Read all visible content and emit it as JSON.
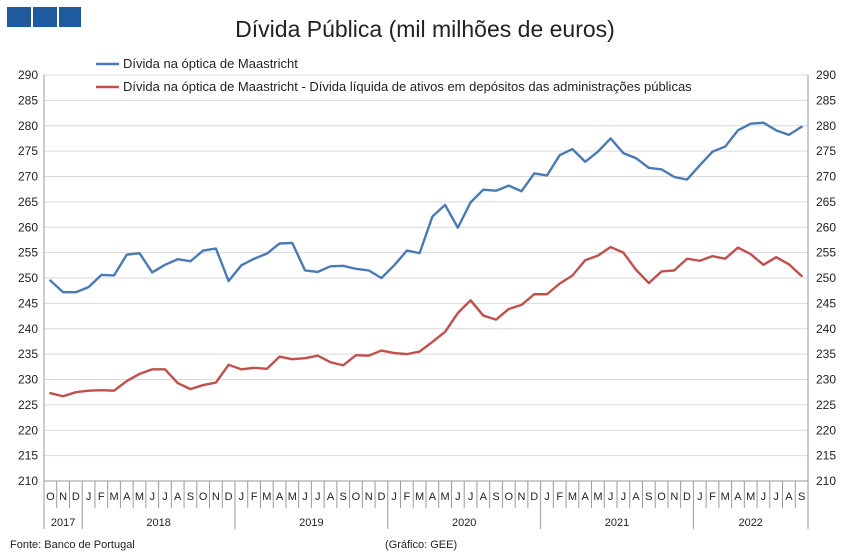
{
  "chart_data": {
    "type": "line",
    "title": "Dívida Pública (mil milhões de euros)",
    "ylim": [
      210,
      290
    ],
    "y_ticks": [
      210,
      215,
      220,
      225,
      230,
      235,
      240,
      245,
      250,
      255,
      260,
      265,
      270,
      275,
      280,
      285,
      290
    ],
    "secondary_y_ticks": [
      210,
      215,
      220,
      225,
      230,
      235,
      240,
      245,
      250,
      255,
      260,
      265,
      270,
      275,
      280,
      285,
      290
    ],
    "grid": true,
    "legend_position": "top",
    "x_month_labels": [
      "O",
      "N",
      "D",
      "J",
      "F",
      "M",
      "A",
      "M",
      "J",
      "J",
      "A",
      "S",
      "O",
      "N",
      "D",
      "J",
      "F",
      "M",
      "A",
      "M",
      "J",
      "J",
      "A",
      "S",
      "O",
      "N",
      "D",
      "J",
      "F",
      "M",
      "A",
      "M",
      "J",
      "J",
      "A",
      "S",
      "O",
      "N",
      "D",
      "J",
      "F",
      "M",
      "A",
      "M",
      "J",
      "J",
      "A",
      "S",
      "O",
      "N",
      "D",
      "J",
      "F",
      "M",
      "A",
      "M",
      "J",
      "J",
      "A",
      "S"
    ],
    "x_year_groups": [
      {
        "year": "2017",
        "start": 0,
        "count": 3
      },
      {
        "year": "2018",
        "start": 3,
        "count": 12
      },
      {
        "year": "2019",
        "start": 15,
        "count": 12
      },
      {
        "year": "2020",
        "start": 27,
        "count": 12
      },
      {
        "year": "2021",
        "start": 39,
        "count": 12
      },
      {
        "year": "2022",
        "start": 51,
        "count": 9
      }
    ],
    "series": [
      {
        "name": "Dívida na óptica de Maastricht",
        "color": "#4a7ab5",
        "values": [
          249.5,
          247.2,
          247.2,
          248.2,
          250.6,
          250.5,
          254.6,
          254.9,
          251.1,
          252.6,
          253.7,
          253.3,
          255.4,
          255.8,
          249.4,
          252.5,
          253.8,
          254.8,
          256.8,
          256.9,
          251.5,
          251.2,
          252.3,
          252.4,
          251.8,
          251.5,
          250.0,
          252.5,
          255.4,
          254.9,
          262.1,
          264.4,
          259.9,
          264.9,
          267.4,
          267.2,
          268.2,
          267.1,
          270.6,
          270.2,
          274.2,
          275.4,
          272.9,
          274.9,
          277.5,
          274.6,
          273.6,
          271.7,
          271.4,
          269.9,
          269.4,
          272.2,
          274.9,
          275.9,
          279.1,
          280.4,
          280.6,
          279.1,
          278.2,
          279.8
        ]
      },
      {
        "name": "Dívida na óptica de Maastricht - Dívida líquida de ativos em depósitos das administrações públicas",
        "color": "#c0504d",
        "values": [
          227.3,
          226.7,
          227.5,
          227.8,
          227.9,
          227.8,
          229.7,
          231.1,
          232.0,
          232.0,
          229.3,
          228.1,
          228.9,
          229.4,
          232.9,
          232.0,
          232.3,
          232.1,
          234.5,
          234.0,
          234.2,
          234.7,
          233.4,
          232.8,
          234.8,
          234.7,
          235.7,
          235.2,
          235.0,
          235.5,
          237.4,
          239.4,
          243.1,
          245.6,
          242.6,
          241.8,
          243.9,
          244.7,
          246.8,
          246.8,
          248.9,
          250.5,
          253.5,
          254.4,
          256.1,
          255.0,
          251.6,
          249.0,
          251.3,
          251.5,
          253.8,
          253.4,
          254.3,
          253.8,
          256.0,
          254.7,
          252.6,
          254.1,
          252.7,
          250.4
        ]
      }
    ]
  },
  "footer": {
    "source": "Fonte: Banco de Portugal",
    "credit": "(Gráfico: GEE)"
  }
}
